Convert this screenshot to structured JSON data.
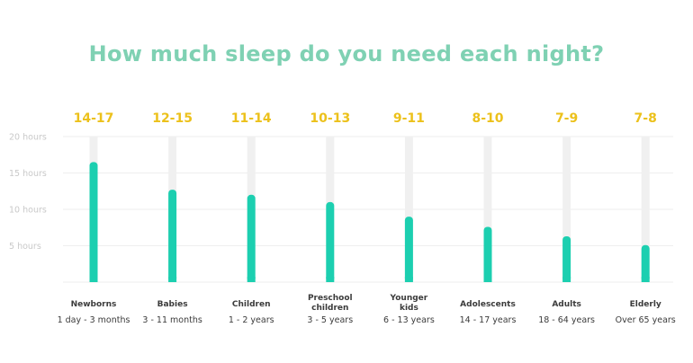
{
  "chart_data": {
    "type": "bar",
    "title": "How much sleep do you need each night?",
    "y_ticks": [
      "20 hours",
      "15 hours",
      "10 hours",
      "5 hours"
    ],
    "y_tick_values": [
      20,
      15,
      10,
      5
    ],
    "ylim": [
      0,
      20
    ],
    "grid": true,
    "categories": [
      {
        "name": "Newborns",
        "age": "1 day - 3 months",
        "range": "14-17"
      },
      {
        "name": "Babies",
        "age": "3 - 11 months",
        "range": "12-15"
      },
      {
        "name": "Children",
        "age": "1 - 2 years",
        "range": "11-14"
      },
      {
        "name": "Preschool children",
        "age": "3 - 5 years",
        "range": "10-13"
      },
      {
        "name": "Younger kids",
        "age": "6 - 13 years",
        "range": "9-11"
      },
      {
        "name": "Adolescents",
        "age": "14 - 17 years",
        "range": "8-10"
      },
      {
        "name": "Adults",
        "age": "18 - 64 years",
        "range": "7-9"
      },
      {
        "name": "Elderly",
        "age": "Over 65 years",
        "range": "7-8"
      }
    ],
    "values": [
      16.5,
      12.7,
      12.0,
      11.0,
      9.0,
      7.6,
      6.3,
      5.1
    ],
    "colors": {
      "title": "#7fd1b3",
      "range_label": "#ecc11b",
      "bar": "#1ccfb0",
      "bar_track": "#f0f0f0",
      "grid": "#eeeeee",
      "tick_label": "#c9c9c9",
      "category_text": "#3b3b3b"
    }
  }
}
